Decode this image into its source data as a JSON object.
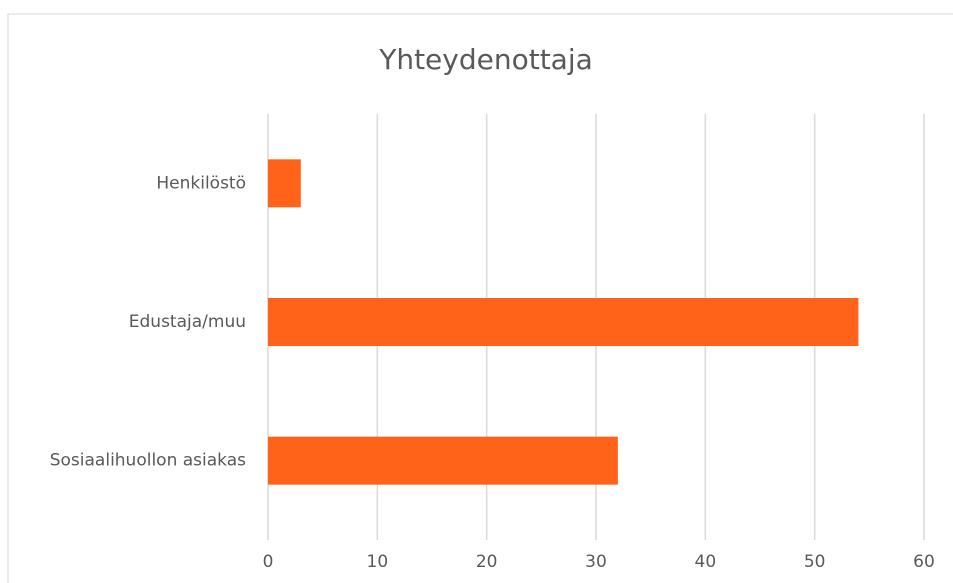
{
  "chart_data": {
    "type": "bar",
    "orientation": "horizontal",
    "title": "Yhteydenottaja",
    "categories": [
      "Henkilöstö",
      "Edustaja/muu",
      "Sosiaalihuollon asiakas"
    ],
    "values": [
      3,
      54,
      32
    ],
    "color": "#ff6319",
    "xlim": [
      0,
      60
    ],
    "xticks": [
      0,
      10,
      20,
      30,
      40,
      50,
      60
    ],
    "grid": true
  }
}
